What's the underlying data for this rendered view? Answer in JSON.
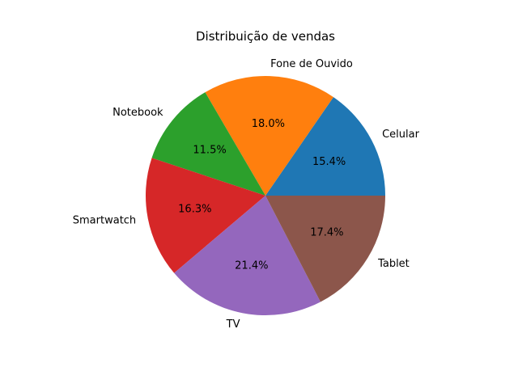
{
  "chart_data": {
    "type": "pie",
    "title": "Distribuição de vendas",
    "slices": [
      {
        "label": "Celular",
        "value": 15.4,
        "pct_label": "15.4%",
        "color": "#1f77b4"
      },
      {
        "label": "Fone de Ouvido",
        "value": 18.0,
        "pct_label": "18.0%",
        "color": "#ff7f0e"
      },
      {
        "label": "Notebook",
        "value": 11.5,
        "pct_label": "11.5%",
        "color": "#2ca02c"
      },
      {
        "label": "Smartwatch",
        "value": 16.3,
        "pct_label": "16.3%",
        "color": "#d62728"
      },
      {
        "label": "TV",
        "value": 21.4,
        "pct_label": "21.4%",
        "color": "#9467bd"
      },
      {
        "label": "Tablet",
        "value": 17.4,
        "pct_label": "17.4%",
        "color": "#8c564b"
      }
    ],
    "start_angle_deg": 0,
    "direction": "counterclockwise",
    "legend": "none"
  }
}
